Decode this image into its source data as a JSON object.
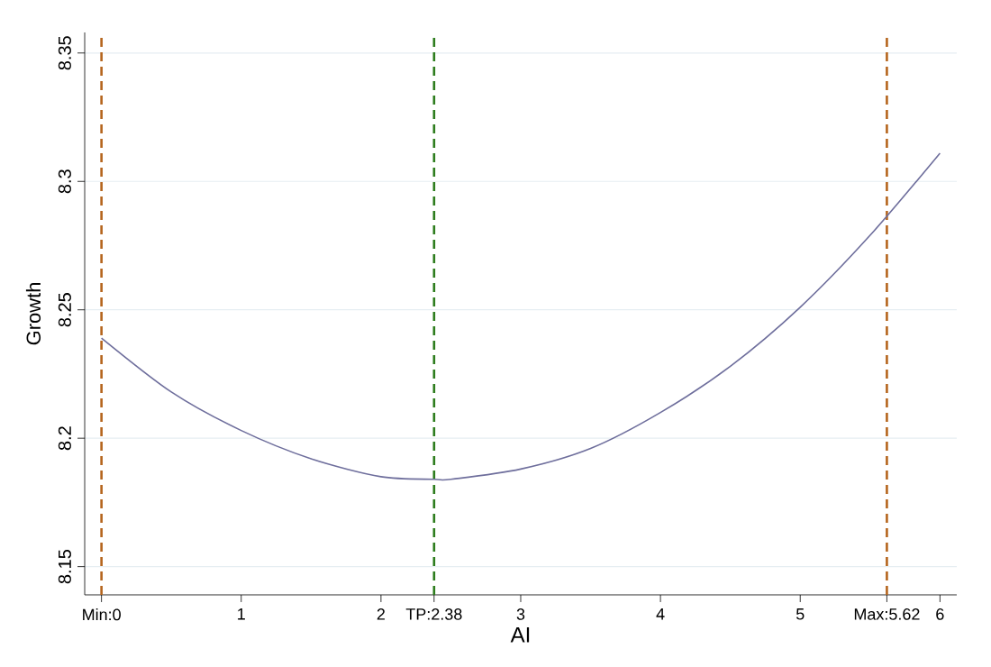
{
  "chart_data": {
    "type": "line",
    "xlabel": "AI",
    "ylabel": "Growth",
    "x": [
      0,
      0.5,
      1,
      1.5,
      2,
      2.38,
      2.5,
      3,
      3.5,
      4,
      4.5,
      5,
      5.5,
      6
    ],
    "series": [
      {
        "color": "#6e6e9c",
        "values": [
          8.239,
          8.218,
          8.203,
          8.192,
          8.185,
          8.184,
          8.184,
          8.188,
          8.196,
          8.21,
          8.228,
          8.251,
          8.279,
          8.311
        ]
      }
    ],
    "xlim": [
      -0.12,
      6.12
    ],
    "ylim": [
      8.139,
      8.358
    ],
    "xticks": [
      {
        "value": 0,
        "label": "Min:0"
      },
      1,
      2,
      {
        "value": 2.38,
        "label": "TP:2.38"
      },
      3,
      4,
      5,
      {
        "value": 5.62,
        "label": "Max:5.62"
      },
      6
    ],
    "yticks": [
      8.15,
      8.2,
      8.25,
      8.3,
      8.35
    ],
    "grid": "y",
    "line_style": "solid",
    "marker": "none",
    "ref_lines": [
      {
        "axis": "x",
        "value": 0,
        "color": "#b5651d",
        "line_style": "dashed"
      },
      {
        "axis": "x",
        "value": 2.38,
        "color": "#2e7d1e",
        "line_style": "dashed"
      },
      {
        "axis": "x",
        "value": 5.62,
        "color": "#b5651d",
        "line_style": "dashed"
      }
    ]
  }
}
